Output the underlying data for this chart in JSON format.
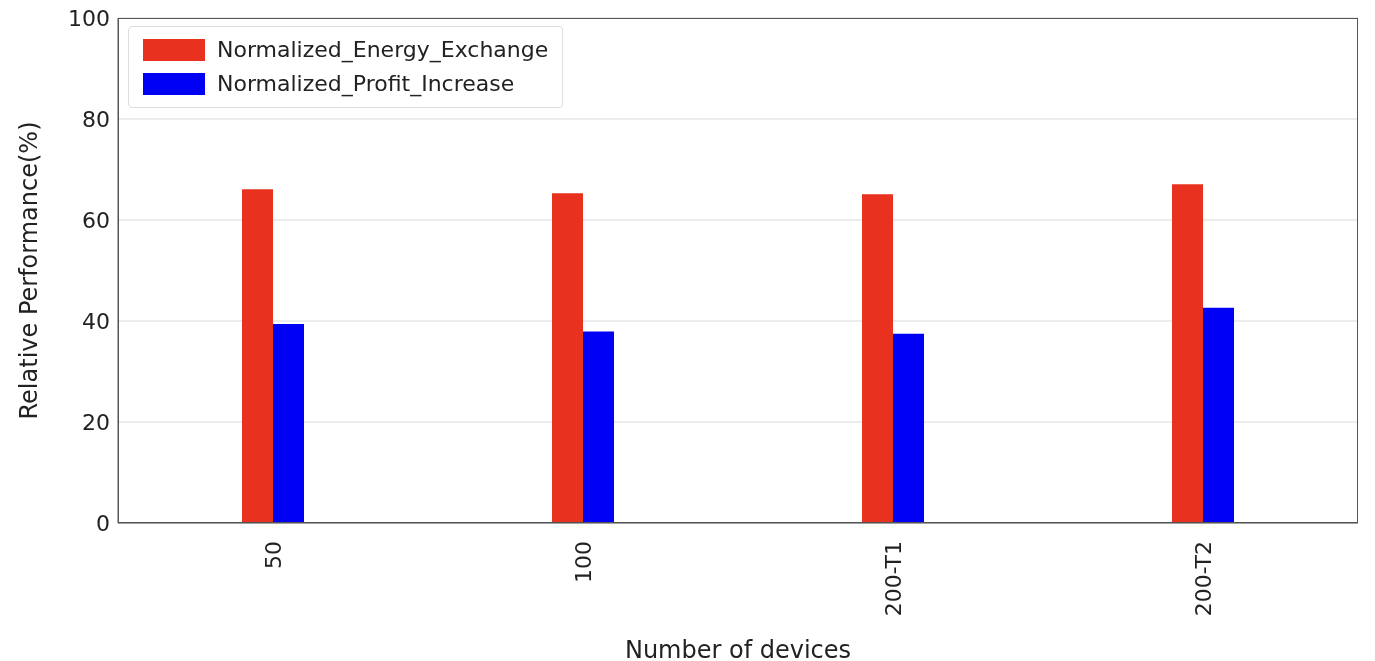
{
  "chart_data": {
    "type": "bar",
    "xlabel": "Number of devices",
    "ylabel": "Relative Performance(%)",
    "categories": [
      "50",
      "100",
      "200-T1",
      "200-T2"
    ],
    "series": [
      {
        "name": "Normalized_Energy_Exchange",
        "color": "#e8321f",
        "values": [
          66.1,
          65.3,
          65.1,
          67.1
        ]
      },
      {
        "name": "Normalized_Profit_Increase",
        "color": "#0000f5",
        "values": [
          39.4,
          37.9,
          37.5,
          42.6
        ]
      }
    ],
    "ylim": [
      0,
      100
    ],
    "yticks": [
      0,
      20,
      40,
      60,
      80,
      100
    ],
    "grid": "y",
    "legend": "top left"
  }
}
